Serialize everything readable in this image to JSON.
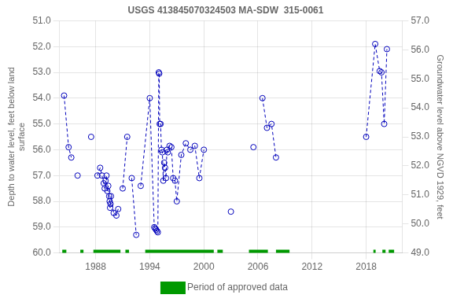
{
  "chart_data": {
    "type": "line",
    "title": "USGS 413845070324503 MA-SDW  315-0061",
    "ylabel": "Depth to water level, feet below land\nsurface",
    "y2label": "Groundwater level above NGVD 1929, feet",
    "xlim": [
      1984,
      2022
    ],
    "xticks": [
      1988,
      1994,
      2000,
      2006,
      2012,
      2018
    ],
    "ylim": [
      60.0,
      51.0
    ],
    "yticks": [
      {
        "value": 51.0,
        "label": "51.0"
      },
      {
        "value": 52.0,
        "label": "52.0"
      },
      {
        "value": 53.0,
        "label": "53.0"
      },
      {
        "value": 54.0,
        "label": "54.0"
      },
      {
        "value": 55.0,
        "label": "55.0"
      },
      {
        "value": 56.0,
        "label": "56.0"
      },
      {
        "value": 57.0,
        "label": "57.0"
      },
      {
        "value": 58.0,
        "label": "58.0"
      },
      {
        "value": 59.0,
        "label": "59.0"
      },
      {
        "value": 60.0,
        "label": "60.0"
      }
    ],
    "y2lim": [
      49.0,
      57.0
    ],
    "y2ticks": [
      {
        "value": 49.0,
        "label": "49.0"
      },
      {
        "value": 50.0,
        "label": "50.0"
      },
      {
        "value": 51.0,
        "label": "51.0"
      },
      {
        "value": 52.0,
        "label": "52.0"
      },
      {
        "value": 53.0,
        "label": "53.0"
      },
      {
        "value": 54.0,
        "label": "54.0"
      },
      {
        "value": 55.0,
        "label": "55.0"
      },
      {
        "value": 56.0,
        "label": "56.0"
      },
      {
        "value": 57.0,
        "label": "57.0"
      }
    ],
    "grid": true,
    "color": "#0000bb",
    "marker": "open_circle",
    "line_style": "dashed",
    "x": [
      1984.5,
      1985.0,
      1985.3,
      null,
      1986.0,
      null,
      1987.5,
      null,
      1988.2,
      1988.5,
      1988.7,
      1988.9,
      1989.0,
      1989.1,
      1989.2,
      1989.3,
      1989.4,
      1989.5,
      1989.55,
      1989.6,
      1989.65,
      1989.7,
      1990.0,
      1990.3,
      1990.5,
      null,
      1991.0,
      1991.5,
      null,
      1992.0,
      1992.5,
      null,
      1993.0,
      1994.0,
      1994.5,
      1994.6,
      1994.7,
      1994.8,
      1994.9,
      1995.0,
      1995.05,
      1995.1,
      1995.2,
      1995.3,
      1995.4,
      1995.5,
      1995.6,
      1995.7,
      1995.8,
      1995.9,
      1996.0,
      1996.2,
      1996.4,
      1996.6,
      1996.8,
      1997.0,
      1997.5,
      1998.0,
      1998.5,
      1999.0,
      1999.5,
      2000.0,
      null,
      2003.0,
      null,
      2005.5,
      null,
      2006.5,
      2007.0,
      2007.5,
      2008.0,
      null,
      2018.0,
      2019.0,
      2019.5,
      2019.7,
      2020.0,
      2020.3
    ],
    "values": [
      53.9,
      55.9,
      56.3,
      null,
      57.0,
      null,
      55.5,
      null,
      57.0,
      56.7,
      57.0,
      57.3,
      57.5,
      57.2,
      57.0,
      57.6,
      57.4,
      57.8,
      58.0,
      58.25,
      58.1,
      57.8,
      58.45,
      58.55,
      58.3,
      null,
      57.5,
      55.5,
      null,
      57.1,
      59.3,
      null,
      57.4,
      54.0,
      59.0,
      59.05,
      59.1,
      59.15,
      59.2,
      53.0,
      53.05,
      55.0,
      55.0,
      56.0,
      56.1,
      57.2,
      56.5,
      56.7,
      57.1,
      56.0,
      56.1,
      55.85,
      55.9,
      57.1,
      57.2,
      58.0,
      56.2,
      55.75,
      56.0,
      55.85,
      57.1,
      56.0,
      null,
      58.4,
      null,
      55.9,
      null,
      54.0,
      55.15,
      55.0,
      56.3,
      null,
      55.5,
      51.9,
      52.95,
      53.0,
      55.0,
      52.1
    ],
    "approved": {
      "name": "Period of approved data",
      "color": "#009900",
      "y": 60.0,
      "ranges": [
        [
          1984.3,
          1984.75
        ],
        [
          1986.3,
          1986.65
        ],
        [
          1987.75,
          1990.75
        ],
        [
          1991.3,
          1991.7
        ],
        [
          1993.5,
          2001.1
        ],
        [
          2001.5,
          2002.1
        ],
        [
          2005.0,
          2007.1
        ],
        [
          2008.0,
          2009.5
        ],
        [
          2018.8,
          2019.05
        ],
        [
          2019.8,
          2020.15
        ],
        [
          2020.5,
          2021.1
        ]
      ]
    },
    "legend": "bottom"
  }
}
